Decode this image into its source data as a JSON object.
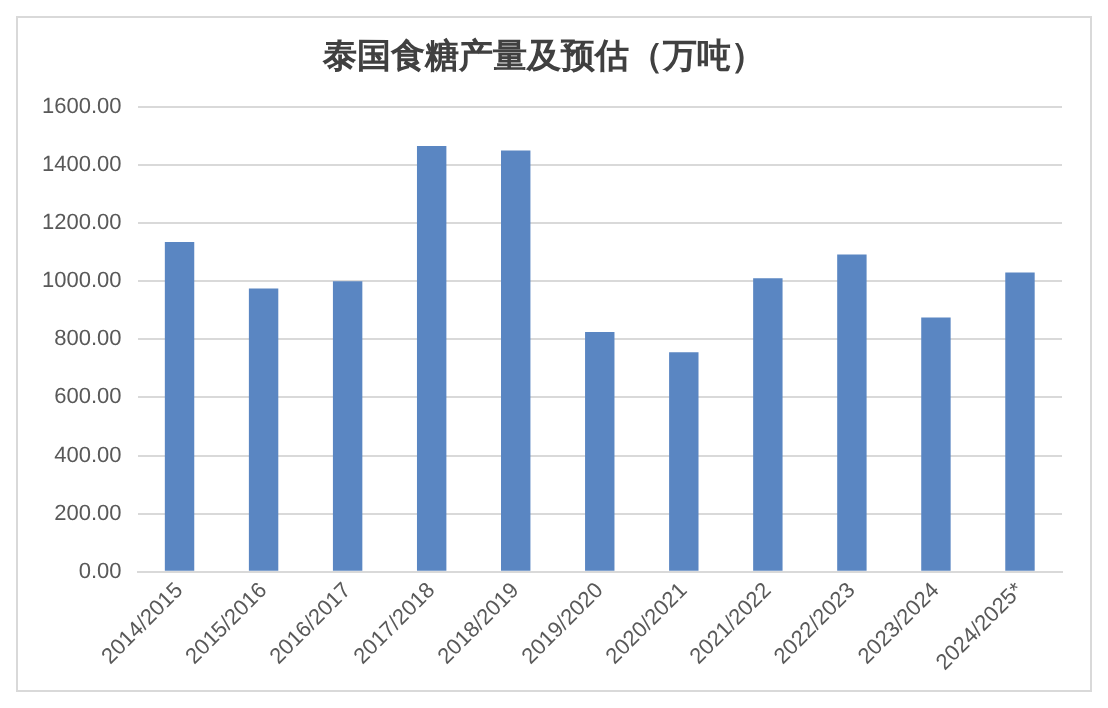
{
  "chart_data": {
    "type": "bar",
    "title": "泰国食糖产量及预估（万吨）",
    "categories": [
      "2014/2015",
      "2015/2016",
      "2016/2017",
      "2017/2018",
      "2018/2019",
      "2019/2020",
      "2020/2021",
      "2021/2022",
      "2022/2023",
      "2023/2024",
      "2024/2025*"
    ],
    "values": [
      1135,
      975,
      1000,
      1465,
      1450,
      825,
      755,
      1010,
      1092,
      875,
      1030
    ],
    "color": "#5a86c2",
    "ylim": [
      0,
      1600
    ],
    "yticks": [
      {
        "value": 0,
        "label": "0.00"
      },
      {
        "value": 200,
        "label": "200.00"
      },
      {
        "value": 400,
        "label": "400.00"
      },
      {
        "value": 600,
        "label": "600.00"
      },
      {
        "value": 800,
        "label": "800.00"
      },
      {
        "value": 1000,
        "label": "1000.00"
      },
      {
        "value": 1200,
        "label": "1200.00"
      },
      {
        "value": 1400,
        "label": "1400.00"
      },
      {
        "value": 1600,
        "label": "1600.00"
      }
    ],
    "grid": "y"
  }
}
